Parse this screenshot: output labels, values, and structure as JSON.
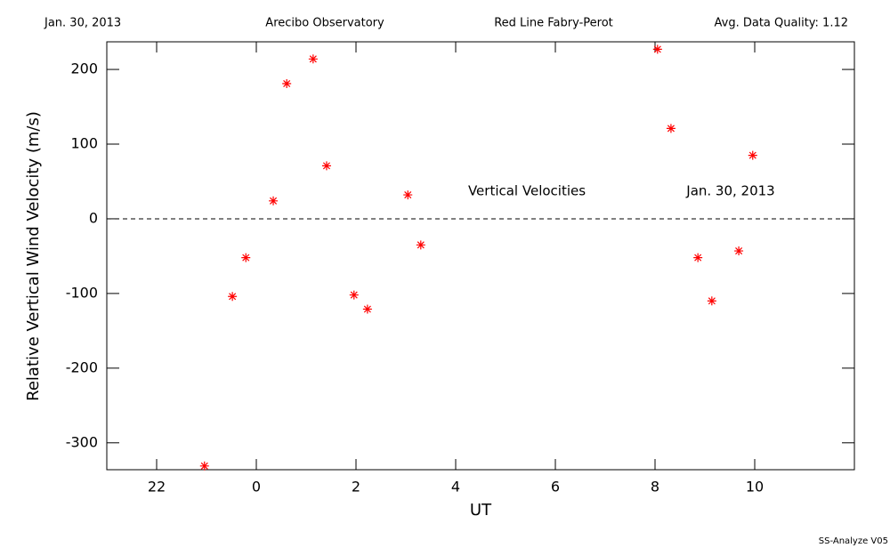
{
  "chart_data": {
    "type": "scatter",
    "header": [
      "Jan. 30, 2013",
      "Arecibo Observatory",
      "Red Line Fabry-Perot",
      "Avg. Data Quality: 1.12"
    ],
    "x_label": "UT",
    "y_label": "Relative Vertical Wind Velocity (m/s)",
    "annotations": [
      "Vertical Velocities",
      "Jan. 30, 2013"
    ],
    "footer": "SS-Analyze V05",
    "x": [
      -1.04,
      -0.48,
      -0.21,
      0.34,
      0.61,
      1.14,
      1.41,
      1.96,
      2.23,
      3.04,
      3.3,
      8.05,
      8.32,
      8.86,
      9.14,
      9.68,
      9.96
    ],
    "values": [
      -331,
      -104,
      -52,
      24,
      181,
      214,
      71,
      -102,
      -121,
      32,
      -35,
      227,
      121,
      -52,
      -110,
      -43,
      85
    ],
    "color": "#ff0000",
    "xlim": [
      -3,
      12
    ],
    "xticks": [
      {
        "value": -2,
        "label": "22"
      },
      0,
      2,
      4,
      6,
      8,
      10
    ],
    "ylim": [
      -336,
      237
    ],
    "yticks": [
      -300,
      -200,
      -100,
      0,
      100,
      200
    ],
    "hline": 0
  }
}
